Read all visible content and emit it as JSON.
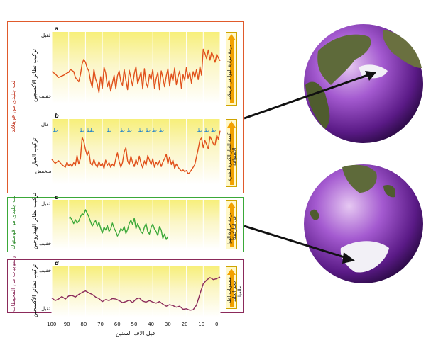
{
  "frames": {
    "greenland": {
      "label": "لب جليدي من غرينلاند",
      "color": "#e05a2b"
    },
    "vostok": {
      "label": "لب جليدي من فوستوك",
      "color": "#3aa838"
    },
    "ocean": {
      "label": "رسوبيات من المحيطات",
      "color": "#8b2a5a"
    }
  },
  "x_axis": {
    "label": "قبل الاف السنين",
    "ticks": [
      "100",
      "90",
      "80",
      "70",
      "60",
      "50",
      "40",
      "30",
      "20",
      "10",
      "0"
    ]
  },
  "chart_data": [
    {
      "type": "line",
      "panel": "a",
      "ylabel": "تركيب نظائر الأكسجين",
      "ytick_top": "ثقيل",
      "ytick_bottom": "خفيف",
      "arrow_text": "درجة حرارة الهوا في غرينلاند",
      "line_color": "#e0501a",
      "xlim": [
        100,
        0
      ],
      "ylim": [
        0,
        10
      ],
      "series": [
        {
          "x": [
            100,
            98,
            96,
            95,
            93,
            91,
            90,
            89,
            87,
            86,
            84,
            83,
            82,
            81,
            80,
            79,
            78,
            77,
            76,
            75,
            74,
            73,
            72,
            71,
            70,
            69,
            68,
            67,
            66,
            65,
            64,
            63,
            62,
            61,
            60,
            59,
            58,
            57,
            56,
            55,
            54,
            53,
            52,
            51,
            50,
            49,
            48,
            47,
            46,
            45,
            44,
            43,
            42,
            41,
            40,
            39,
            38,
            37,
            36,
            35,
            34,
            33,
            32,
            31,
            30,
            29,
            28,
            27,
            26,
            25,
            24,
            23,
            22,
            21,
            20,
            19,
            18,
            17,
            16,
            15,
            14,
            13,
            12,
            11,
            10,
            9,
            8,
            7,
            6,
            5,
            4,
            3,
            2,
            1,
            0
          ],
          "y": [
            4.5,
            4.2,
            3.7,
            3.8,
            4.0,
            4.3,
            4.4,
            4.8,
            4.5,
            3.7,
            3.1,
            4.1,
            5.6,
            6.2,
            5.8,
            5.0,
            4.6,
            3.2,
            2.3,
            4.8,
            3.5,
            2.8,
            1.6,
            3.8,
            2.2,
            5.1,
            4.3,
            2.4,
            3.3,
            1.8,
            2.9,
            4.0,
            2.1,
            3.9,
            4.6,
            3.1,
            2.6,
            4.8,
            3.3,
            2.0,
            4.7,
            3.6,
            2.5,
            4.2,
            5.2,
            2.8,
            3.6,
            4.5,
            2.1,
            4.9,
            3.0,
            2.3,
            4.1,
            3.4,
            4.8,
            2.2,
            3.5,
            4.4,
            2.0,
            4.6,
            3.7,
            2.4,
            3.9,
            4.9,
            2.5,
            4.2,
            3.2,
            5.0,
            2.7,
            3.8,
            4.6,
            2.2,
            4.1,
            3.3,
            5.1,
            3.6,
            4.4,
            2.9,
            4.5,
            3.7,
            4.8,
            3.4,
            5.2,
            4.0,
            7.6,
            7.0,
            6.3,
            7.5,
            6.1,
            7.2,
            6.6,
            5.8,
            6.9,
            6.4,
            6.0
          ]
        }
      ]
    },
    {
      "type": "line",
      "panel": "b",
      "ylabel": "تركيب الغبار",
      "ytick_top": "عال",
      "ytick_bottom": "منخفض",
      "arrow_text": "كمية الغبار الكبيرة للفترة الاستوائية",
      "line_color": "#e0501a",
      "xlim": [
        100,
        0
      ],
      "ylim": [
        0,
        10
      ],
      "series": [
        {
          "x": [
            100,
            98,
            96,
            94,
            92,
            91,
            90,
            89,
            88,
            87,
            86,
            85,
            84,
            83,
            82,
            81,
            80,
            79,
            78,
            77,
            76,
            75,
            74,
            73,
            72,
            71,
            70,
            69,
            68,
            67,
            66,
            65,
            64,
            63,
            62,
            61,
            60,
            59,
            58,
            57,
            56,
            55,
            54,
            53,
            52,
            51,
            50,
            49,
            48,
            47,
            46,
            45,
            44,
            43,
            42,
            41,
            40,
            39,
            38,
            37,
            36,
            35,
            34,
            33,
            32,
            31,
            30,
            29,
            28,
            27,
            26,
            25,
            24,
            23,
            22,
            21,
            20,
            19,
            18,
            17,
            16,
            15,
            14,
            13,
            12,
            11,
            10,
            9,
            8,
            7,
            6,
            5,
            4,
            3,
            2,
            1,
            0
          ],
          "y": [
            3.8,
            3.2,
            3.6,
            3.0,
            2.6,
            3.4,
            2.8,
            3.1,
            2.7,
            3.3,
            2.9,
            4.4,
            3.1,
            4.0,
            7.2,
            6.6,
            5.3,
            4.4,
            5.1,
            3.2,
            2.9,
            3.8,
            3.0,
            2.6,
            3.5,
            2.8,
            3.2,
            2.4,
            3.7,
            2.9,
            3.3,
            2.6,
            3.1,
            2.7,
            3.9,
            4.8,
            3.5,
            2.6,
            3.3,
            4.9,
            5.6,
            3.6,
            3.0,
            4.3,
            3.3,
            2.7,
            3.8,
            3.0,
            4.3,
            3.2,
            2.5,
            3.6,
            2.9,
            4.4,
            3.7,
            3.0,
            3.9,
            2.6,
            3.4,
            2.9,
            3.6,
            2.7,
            3.4,
            3.9,
            4.6,
            3.1,
            4.2,
            3.0,
            3.7,
            2.4,
            3.1,
            2.6,
            2.3,
            2.0,
            2.2,
            1.9,
            2.1,
            1.6,
            1.8,
            2.2,
            2.6,
            3.0,
            4.2,
            5.4,
            6.8,
            7.1,
            5.6,
            6.7,
            6.1,
            5.4,
            7.3,
            6.8,
            6.2,
            6.0,
            7.5,
            6.9,
            8.2
          ]
        }
      ],
      "annotations": [
        {
          "text": "ط",
          "x": 98
        },
        {
          "text": "ط ط",
          "x": 80
        },
        {
          "text": "ط",
          "x": 76
        },
        {
          "text": "ط",
          "x": 66
        },
        {
          "text": "ط ط",
          "x": 56
        },
        {
          "text": "ط ط",
          "x": 45
        },
        {
          "text": "ط ط",
          "x": 37
        },
        {
          "text": "ط ط",
          "x": 10
        },
        {
          "text": "ط",
          "x": 4
        }
      ]
    },
    {
      "type": "line",
      "panel": "c",
      "ylabel": "تركيب نظائر الهيدروجين",
      "ytick_top": "ثقيل",
      "ytick_bottom": "خفيف",
      "arrow_text": "درجة حرارة الهوا في انتاركتيكا",
      "line_color": "#3aa838",
      "xlim": [
        100,
        0
      ],
      "ylim": [
        0,
        10
      ],
      "series": [
        {
          "x": [
            90,
            89,
            88,
            87,
            86,
            85,
            84,
            83,
            82,
            81,
            80,
            79,
            78,
            77,
            76,
            75,
            74,
            73,
            72,
            71,
            70,
            69,
            68,
            67,
            66,
            65,
            64,
            63,
            62,
            61,
            60,
            59,
            58,
            57,
            56,
            55,
            54,
            53,
            52,
            51,
            50,
            49,
            48,
            47,
            46,
            45,
            44,
            43,
            42,
            41,
            40,
            39,
            38,
            37,
            36,
            35,
            34,
            33,
            32,
            31
          ],
          "y": [
            6.3,
            6.5,
            5.9,
            5.2,
            6.0,
            5.3,
            5.7,
            6.6,
            7.2,
            7.0,
            8.0,
            7.3,
            6.6,
            5.6,
            4.7,
            5.3,
            5.8,
            4.7,
            5.5,
            4.3,
            3.3,
            4.5,
            3.9,
            4.8,
            3.6,
            4.1,
            5.3,
            4.3,
            3.6,
            2.7,
            3.3,
            4.2,
            3.8,
            4.6,
            3.2,
            4.0,
            5.2,
            5.9,
            5.0,
            6.3,
            4.2,
            5.2,
            4.4,
            3.6,
            3.2,
            4.5,
            5.2,
            3.6,
            3.1,
            4.4,
            5.1,
            4.1,
            3.6,
            2.8,
            4.6,
            3.9,
            2.2,
            3.1,
            2.0,
            2.6
          ]
        }
      ]
    },
    {
      "type": "line",
      "panel": "d",
      "ylabel": "تركيب نظائر الأكسجين",
      "ytick_top": "خفيف",
      "ytick_bottom": "ثقيل",
      "arrow_text": "مستويات اعلى حجم الجليد عالميا",
      "line_color": "#8b2a5a",
      "xlim": [
        100,
        0
      ],
      "ylim": [
        0,
        10
      ],
      "series": [
        {
          "x": [
            100,
            98,
            96,
            94,
            92,
            90,
            88,
            86,
            84,
            82,
            80,
            78,
            76,
            74,
            72,
            70,
            68,
            66,
            64,
            62,
            60,
            58,
            56,
            54,
            52,
            50,
            48,
            46,
            44,
            42,
            40,
            38,
            36,
            34,
            32,
            30,
            28,
            26,
            24,
            22,
            20,
            18,
            16,
            14,
            12,
            10,
            8,
            6,
            4,
            2,
            0
          ],
          "y": [
            3.8,
            3.3,
            3.6,
            4.1,
            3.6,
            4.2,
            4.3,
            4.0,
            4.5,
            4.9,
            5.2,
            4.8,
            4.5,
            4.0,
            3.7,
            3.1,
            3.5,
            3.3,
            3.7,
            3.6,
            3.3,
            2.9,
            3.1,
            3.4,
            2.9,
            3.6,
            3.8,
            3.2,
            3.0,
            3.3,
            3.0,
            2.8,
            3.1,
            2.6,
            2.2,
            2.5,
            2.3,
            2.0,
            2.2,
            1.6,
            1.7,
            1.4,
            1.5,
            2.4,
            4.6,
            6.6,
            7.3,
            7.8,
            7.4,
            7.6,
            7.9
          ]
        }
      ]
    }
  ]
}
